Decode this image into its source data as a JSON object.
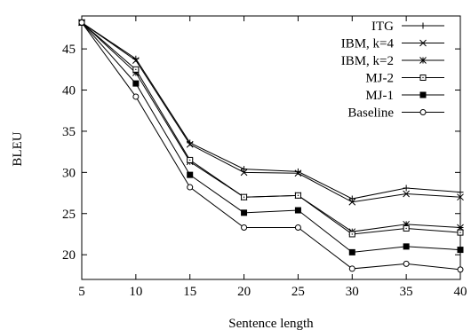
{
  "chart_data": {
    "type": "line",
    "xlabel": "Sentence length",
    "ylabel": "BLEU",
    "xlim": [
      5,
      40
    ],
    "ylim": [
      17,
      49
    ],
    "x_ticks": [
      5,
      10,
      15,
      20,
      25,
      30,
      35,
      40
    ],
    "y_ticks": [
      20,
      25,
      30,
      35,
      40,
      45
    ],
    "grid": false,
    "legend_position": "top-right",
    "x": [
      5,
      10,
      15,
      20,
      25,
      30,
      35,
      40
    ],
    "series": [
      {
        "name": "ITG",
        "marker": "plus",
        "values": [
          48.2,
          43.8,
          33.6,
          30.4,
          30.1,
          26.8,
          28.1,
          27.6
        ]
      },
      {
        "name": "IBM, k=4",
        "marker": "x",
        "values": [
          48.2,
          43.6,
          33.4,
          30.0,
          29.9,
          26.4,
          27.4,
          27.0
        ]
      },
      {
        "name": "IBM, k=2",
        "marker": "asterisk",
        "values": [
          48.2,
          42.1,
          31.3,
          27.0,
          27.2,
          22.8,
          23.7,
          23.3
        ]
      },
      {
        "name": "MJ-2",
        "marker": "square-open",
        "values": [
          48.2,
          42.5,
          31.5,
          27.0,
          27.2,
          22.5,
          23.2,
          22.7
        ]
      },
      {
        "name": "MJ-1",
        "marker": "square-filled",
        "values": [
          48.2,
          40.8,
          29.7,
          25.1,
          25.4,
          20.3,
          21.0,
          20.6
        ]
      },
      {
        "name": "Baseline",
        "marker": "circle-open",
        "values": [
          48.2,
          39.2,
          28.2,
          23.3,
          23.3,
          18.3,
          18.9,
          18.2
        ]
      }
    ]
  }
}
